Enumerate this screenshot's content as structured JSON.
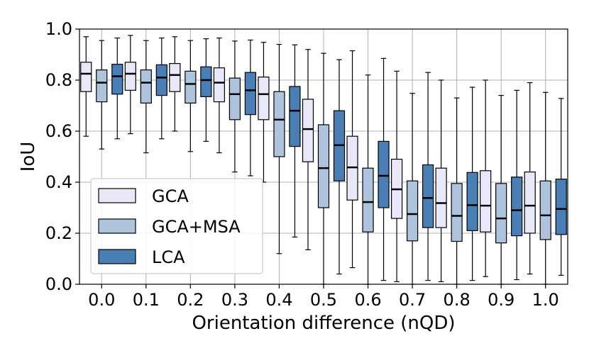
{
  "chart_data": {
    "type": "boxplot",
    "title": "",
    "xlabel": "Orientation difference (nQD)",
    "ylabel": "IoU",
    "ylim": [
      0.0,
      1.0
    ],
    "yticks": [
      "0.0",
      "0.2",
      "0.4",
      "0.6",
      "0.8",
      "1.0"
    ],
    "categories": [
      "0.0",
      "0.1",
      "0.2",
      "0.3",
      "0.4",
      "0.5",
      "0.6",
      "0.7",
      "0.8",
      "0.9",
      "1.0"
    ],
    "grid": true,
    "legend_position": "lower-left",
    "series": [
      {
        "name": "GCA",
        "color": "#e8e8f8",
        "boxes": [
          {
            "whislo": 0.58,
            "q1": 0.755,
            "med": 0.825,
            "q3": 0.87,
            "whishi": 0.97
          },
          {
            "whislo": 0.59,
            "q1": 0.76,
            "med": 0.825,
            "q3": 0.87,
            "whishi": 0.975
          },
          {
            "whislo": 0.6,
            "q1": 0.755,
            "med": 0.82,
            "q3": 0.865,
            "whishi": 0.97
          },
          {
            "whislo": 0.515,
            "q1": 0.715,
            "med": 0.79,
            "q3": 0.848,
            "whishi": 0.965
          },
          {
            "whislo": 0.4,
            "q1": 0.645,
            "med": 0.745,
            "q3": 0.812,
            "whishi": 0.948
          },
          {
            "whislo": 0.135,
            "q1": 0.48,
            "med": 0.608,
            "q3": 0.725,
            "whishi": 0.92
          },
          {
            "whislo": 0.065,
            "q1": 0.33,
            "med": 0.458,
            "q3": 0.58,
            "whishi": 0.915
          },
          {
            "whislo": 0.01,
            "q1": 0.258,
            "med": 0.372,
            "q3": 0.49,
            "whishi": 0.835
          },
          {
            "whislo": 0.01,
            "q1": 0.222,
            "med": 0.318,
            "q3": 0.455,
            "whishi": 0.8
          },
          {
            "whislo": 0.03,
            "q1": 0.205,
            "med": 0.308,
            "q3": 0.445,
            "whishi": 0.8
          },
          {
            "whislo": 0.04,
            "q1": 0.2,
            "med": 0.308,
            "q3": 0.44,
            "whishi": 0.79
          }
        ]
      },
      {
        "name": "GCA+MSA",
        "color": "#aec3dc",
        "boxes": [
          {
            "whislo": 0.53,
            "q1": 0.715,
            "med": 0.79,
            "q3": 0.84,
            "whishi": 0.955
          },
          {
            "whislo": 0.515,
            "q1": 0.71,
            "med": 0.79,
            "q3": 0.84,
            "whishi": 0.955
          },
          {
            "whislo": 0.52,
            "q1": 0.71,
            "med": 0.785,
            "q3": 0.835,
            "whishi": 0.955
          },
          {
            "whislo": 0.44,
            "q1": 0.645,
            "med": 0.745,
            "q3": 0.808,
            "whishi": 0.953
          },
          {
            "whislo": 0.12,
            "q1": 0.5,
            "med": 0.645,
            "q3": 0.755,
            "whishi": 0.94
          },
          {
            "whislo": 0.0,
            "q1": 0.3,
            "med": 0.455,
            "q3": 0.625,
            "whishi": 0.905
          },
          {
            "whislo": 0.0,
            "q1": 0.205,
            "med": 0.322,
            "q3": 0.455,
            "whishi": 0.82
          },
          {
            "whislo": 0.0,
            "q1": 0.17,
            "med": 0.275,
            "q3": 0.405,
            "whishi": 0.748
          },
          {
            "whislo": 0.0,
            "q1": 0.168,
            "med": 0.268,
            "q3": 0.395,
            "whishi": 0.73
          },
          {
            "whislo": 0.0,
            "q1": 0.162,
            "med": 0.258,
            "q3": 0.395,
            "whishi": 0.74
          },
          {
            "whislo": 0.0,
            "q1": 0.175,
            "med": 0.27,
            "q3": 0.405,
            "whishi": 0.752
          }
        ]
      },
      {
        "name": "LCA",
        "color": "#4a7fb5",
        "boxes": [
          {
            "whislo": 0.57,
            "q1": 0.745,
            "med": 0.815,
            "q3": 0.862,
            "whishi": 0.965
          },
          {
            "whislo": 0.57,
            "q1": 0.74,
            "med": 0.81,
            "q3": 0.86,
            "whishi": 0.965
          },
          {
            "whislo": 0.56,
            "q1": 0.735,
            "med": 0.8,
            "q3": 0.852,
            "whishi": 0.962
          },
          {
            "whislo": 0.425,
            "q1": 0.665,
            "med": 0.76,
            "q3": 0.83,
            "whishi": 0.957
          },
          {
            "whislo": 0.185,
            "q1": 0.54,
            "med": 0.68,
            "q3": 0.775,
            "whishi": 0.938
          },
          {
            "whislo": 0.04,
            "q1": 0.405,
            "med": 0.545,
            "q3": 0.68,
            "whishi": 0.88
          },
          {
            "whislo": 0.015,
            "q1": 0.3,
            "med": 0.425,
            "q3": 0.56,
            "whishi": 0.885
          },
          {
            "whislo": 0.015,
            "q1": 0.222,
            "med": 0.338,
            "q3": 0.468,
            "whishi": 0.83
          },
          {
            "whislo": 0.015,
            "q1": 0.21,
            "med": 0.31,
            "q3": 0.438,
            "whishi": 0.772
          },
          {
            "whislo": 0.018,
            "q1": 0.19,
            "med": 0.29,
            "q3": 0.42,
            "whishi": 0.76
          },
          {
            "whislo": 0.035,
            "q1": 0.195,
            "med": 0.295,
            "q3": 0.412,
            "whishi": 0.728
          }
        ]
      }
    ]
  }
}
